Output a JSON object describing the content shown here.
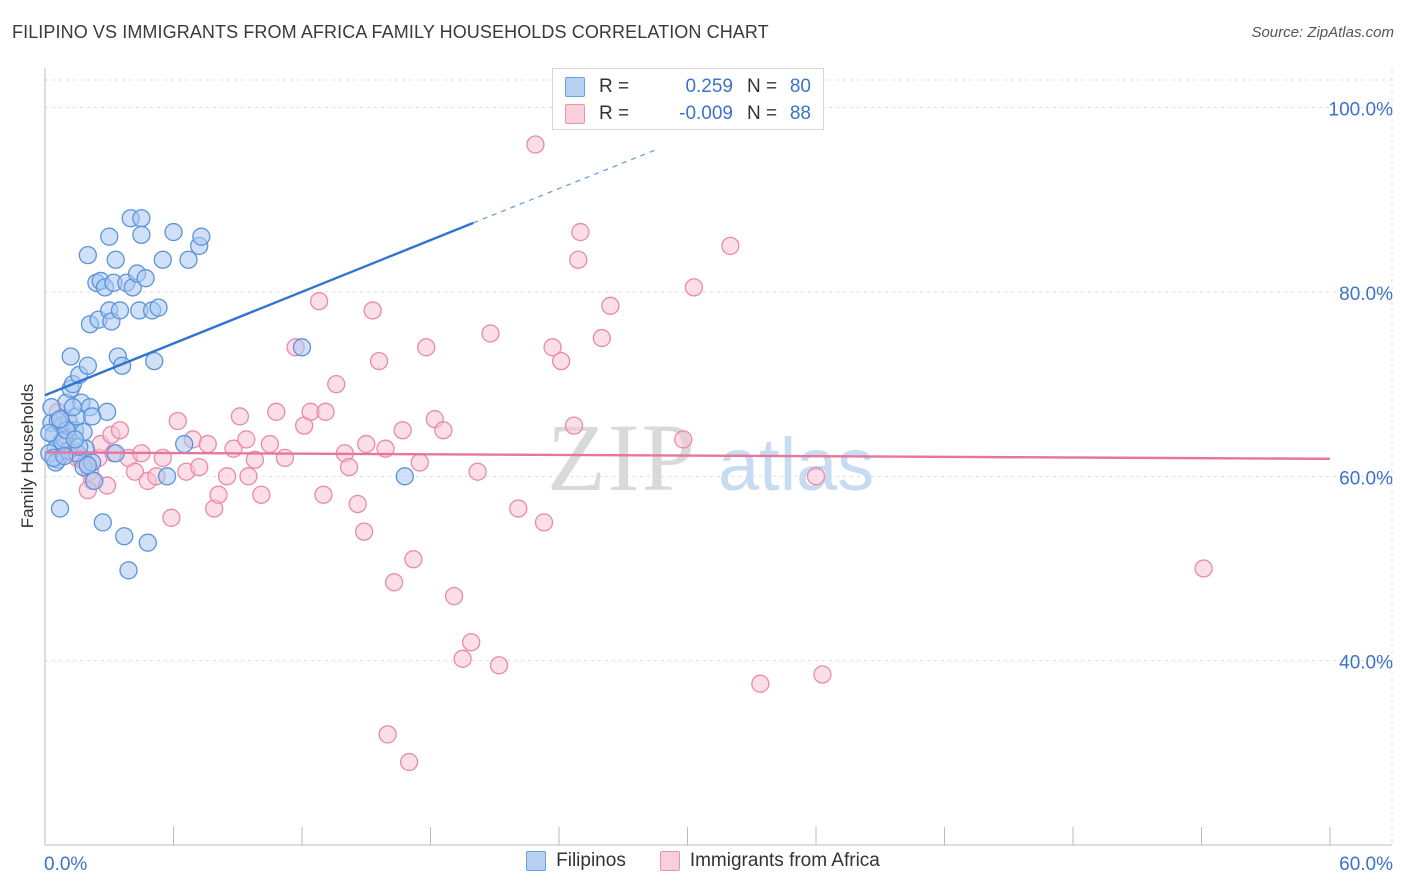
{
  "title": "FILIPINO VS IMMIGRANTS FROM AFRICA FAMILY HOUSEHOLDS CORRELATION CHART",
  "source": "Source: ZipAtlas.com",
  "colors": {
    "blue_fill": "#a9c8f0",
    "blue_stroke": "#5b93dc",
    "blue_line": "#2f74d0",
    "pink_fill": "#f7c2d4",
    "pink_stroke": "#e98aab",
    "pink_line": "#e8759b",
    "axis_text": "#3d72c8",
    "grid": "#dddddd"
  },
  "legend_top": {
    "rows": [
      {
        "r_label": "R =",
        "r_value": "0.259",
        "n_label": "N =",
        "n_value": "80"
      },
      {
        "r_label": "R =",
        "r_value": "-0.009",
        "n_label": "N =",
        "n_value": "88"
      }
    ]
  },
  "legend_bottom": [
    "Filipinos",
    "Immigrants from Africa"
  ],
  "watermark": {
    "zip": "ZIP",
    "atlas": "atlas"
  },
  "chart_data": {
    "type": "scatter",
    "title": "FILIPINO VS IMMIGRANTS FROM AFRICA FAMILY HOUSEHOLDS CORRELATION CHART",
    "xlabel": "",
    "ylabel": "Family Households",
    "xlim": [
      0,
      60
    ],
    "ylim": [
      20,
      103
    ],
    "x_tick_labels": [
      {
        "value": 0,
        "label": "0.0%"
      },
      {
        "value": 60,
        "label": "60.0%"
      }
    ],
    "y_tick_labels": [
      {
        "value": 100,
        "label": "100.0%"
      },
      {
        "value": 80,
        "label": "80.0%"
      },
      {
        "value": 60,
        "label": "60.0%"
      },
      {
        "value": 40,
        "label": "40.0%"
      }
    ],
    "series": [
      {
        "name": "Filipinos",
        "r": 0.259,
        "n": 80,
        "trend": {
          "x0": 0,
          "y0": 68.8,
          "x1": 20,
          "y1": 87.5,
          "dash_x1": 28.6,
          "dash_y1": 95.5
        },
        "points": [
          [
            0.3,
            65.8
          ],
          [
            0.4,
            64.5
          ],
          [
            0.5,
            63
          ],
          [
            0.6,
            61.8
          ],
          [
            0.2,
            62.5
          ],
          [
            0.8,
            65.5
          ],
          [
            0.7,
            56.5
          ],
          [
            1.0,
            68
          ],
          [
            1.1,
            66
          ],
          [
            1.2,
            69.5
          ],
          [
            1.3,
            70
          ],
          [
            1.2,
            73
          ],
          [
            1.4,
            65
          ],
          [
            1.5,
            66.5
          ],
          [
            1.6,
            71
          ],
          [
            1.7,
            68
          ],
          [
            1.8,
            61
          ],
          [
            1.9,
            63
          ],
          [
            2.0,
            84
          ],
          [
            2.0,
            72
          ],
          [
            2.1,
            67.5
          ],
          [
            2.1,
            76.5
          ],
          [
            2.2,
            61.5
          ],
          [
            2.3,
            59.5
          ],
          [
            2.4,
            81
          ],
          [
            2.5,
            77
          ],
          [
            2.6,
            81.2
          ],
          [
            2.7,
            55
          ],
          [
            2.8,
            80.5
          ],
          [
            2.9,
            67
          ],
          [
            3.0,
            78
          ],
          [
            3.0,
            86
          ],
          [
            3.1,
            76.8
          ],
          [
            3.2,
            81
          ],
          [
            3.3,
            62.5
          ],
          [
            3.3,
            83.5
          ],
          [
            3.4,
            73
          ],
          [
            3.5,
            78
          ],
          [
            3.6,
            72
          ],
          [
            3.7,
            53.5
          ],
          [
            3.8,
            81
          ],
          [
            3.9,
            49.8
          ],
          [
            4.0,
            88
          ],
          [
            4.1,
            80.5
          ],
          [
            4.3,
            82
          ],
          [
            4.4,
            78
          ],
          [
            4.5,
            88
          ],
          [
            4.5,
            86.2
          ],
          [
            4.7,
            81.5
          ],
          [
            4.8,
            52.8
          ],
          [
            5.0,
            78
          ],
          [
            5.1,
            72.5
          ],
          [
            5.3,
            78.3
          ],
          [
            5.5,
            83.5
          ],
          [
            5.7,
            60
          ],
          [
            6.0,
            86.5
          ],
          [
            6.7,
            83.5
          ],
          [
            7.2,
            85
          ],
          [
            7.3,
            86
          ],
          [
            6.5,
            63.5
          ],
          [
            12.0,
            74
          ],
          [
            16.8,
            60
          ],
          [
            0.3,
            67.5
          ],
          [
            0.9,
            64
          ],
          [
            1.1,
            62.8
          ],
          [
            0.5,
            61.5
          ],
          [
            0.6,
            66
          ],
          [
            1.5,
            62.5
          ],
          [
            2.0,
            61.2
          ],
          [
            1.3,
            67.5
          ],
          [
            0.4,
            62
          ],
          [
            0.8,
            63.8
          ],
          [
            1.0,
            65
          ],
          [
            1.6,
            63.2
          ],
          [
            2.2,
            66.5
          ],
          [
            1.8,
            64.8
          ],
          [
            0.7,
            66.2
          ],
          [
            1.4,
            64
          ],
          [
            0.2,
            64.7
          ],
          [
            0.9,
            62.2
          ]
        ]
      },
      {
        "name": "Immigrants from Africa",
        "r": -0.009,
        "n": 88,
        "trend": {
          "x0": 0,
          "y0": 62.6,
          "x1": 60,
          "y1": 61.9
        },
        "points": [
          [
            0.6,
            67
          ],
          [
            0.8,
            65.5
          ],
          [
            1.0,
            64
          ],
          [
            1.2,
            63
          ],
          [
            1.3,
            62.5
          ],
          [
            1.5,
            62
          ],
          [
            1.7,
            61.8
          ],
          [
            1.9,
            61.5
          ],
          [
            2.1,
            60.5
          ],
          [
            2.2,
            59.5
          ],
          [
            2.5,
            62
          ],
          [
            2.6,
            63.5
          ],
          [
            2.9,
            59
          ],
          [
            3.1,
            64.5
          ],
          [
            3.2,
            62.5
          ],
          [
            3.5,
            65
          ],
          [
            3.9,
            62
          ],
          [
            4.2,
            60.5
          ],
          [
            4.5,
            62.5
          ],
          [
            4.8,
            59.5
          ],
          [
            5.2,
            60
          ],
          [
            5.5,
            62
          ],
          [
            5.9,
            55.5
          ],
          [
            6.2,
            66
          ],
          [
            6.6,
            60.5
          ],
          [
            6.9,
            64
          ],
          [
            7.2,
            61
          ],
          [
            7.6,
            63.5
          ],
          [
            7.9,
            56.5
          ],
          [
            8.1,
            58
          ],
          [
            8.5,
            60
          ],
          [
            8.8,
            63
          ],
          [
            9.1,
            66.5
          ],
          [
            9.4,
            64
          ],
          [
            9.8,
            61.8
          ],
          [
            10.1,
            58
          ],
          [
            10.5,
            63.5
          ],
          [
            10.8,
            67
          ],
          [
            11.2,
            62
          ],
          [
            11.7,
            74
          ],
          [
            12.1,
            65.5
          ],
          [
            12.4,
            67
          ],
          [
            12.8,
            79
          ],
          [
            13.1,
            67
          ],
          [
            13.6,
            70
          ],
          [
            14.0,
            62.5
          ],
          [
            14.2,
            61
          ],
          [
            14.6,
            57
          ],
          [
            14.9,
            54
          ],
          [
            15.3,
            78
          ],
          [
            15.6,
            72.5
          ],
          [
            15.9,
            63
          ],
          [
            16.3,
            48.5
          ],
          [
            16.7,
            65
          ],
          [
            17.2,
            51
          ],
          [
            17.5,
            61.5
          ],
          [
            17.8,
            74
          ],
          [
            18.2,
            66.2
          ],
          [
            18.6,
            65
          ],
          [
            19.1,
            47
          ],
          [
            19.5,
            40.2
          ],
          [
            19.9,
            42
          ],
          [
            20.2,
            60.5
          ],
          [
            20.8,
            75.5
          ],
          [
            21.2,
            39.5
          ],
          [
            22.1,
            56.5
          ],
          [
            22.9,
            96
          ],
          [
            23.3,
            55
          ],
          [
            23.7,
            74
          ],
          [
            24.1,
            72.5
          ],
          [
            24.7,
            65.5
          ],
          [
            24.9,
            83.5
          ],
          [
            25.0,
            86.5
          ],
          [
            26.0,
            75
          ],
          [
            26.4,
            78.5
          ],
          [
            29.8,
            64
          ],
          [
            30.3,
            80.5
          ],
          [
            32.0,
            85
          ],
          [
            33.4,
            37.5
          ],
          [
            36.0,
            60
          ],
          [
            36.3,
            38.5
          ],
          [
            54.1,
            50
          ],
          [
            16.0,
            32
          ],
          [
            17.0,
            29
          ],
          [
            2.0,
            58.5
          ],
          [
            9.5,
            60
          ],
          [
            13.0,
            58
          ],
          [
            15.0,
            63.5
          ]
        ]
      }
    ]
  }
}
